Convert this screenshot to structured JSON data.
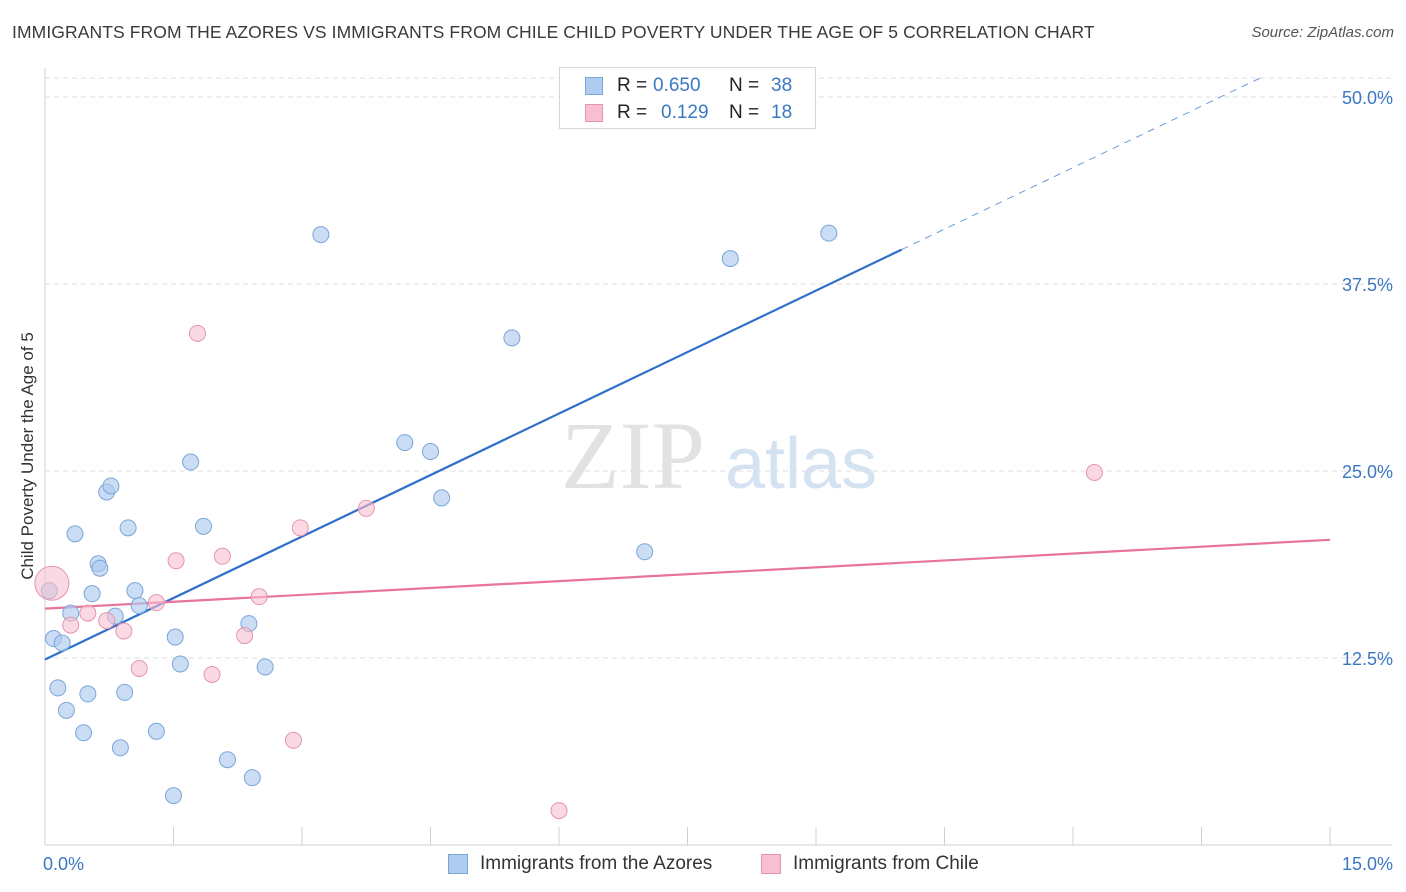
{
  "title": "IMMIGRANTS FROM THE AZORES VS IMMIGRANTS FROM CHILE CHILD POVERTY UNDER THE AGE OF 5 CORRELATION CHART",
  "source": "Source: ZipAtlas.com",
  "watermark": {
    "zip": "ZIP",
    "atlas": "atlas"
  },
  "legend": {
    "rows": [
      {
        "r_label": "R =",
        "r_value": "0.650",
        "n_label": "N =",
        "n_value": "38",
        "color": "#aecbf0"
      },
      {
        "r_label": "R =",
        "r_value": "0.129",
        "n_label": "N =",
        "n_value": "18",
        "color": "#f7bfd0"
      }
    ]
  },
  "bottom_legend": [
    {
      "label": "Immigrants from the Azores",
      "color": "#aecbf0"
    },
    {
      "label": "Immigrants from Chile",
      "color": "#f7bfd0"
    }
  ],
  "colors": {
    "azores_fill": "#aecbf0",
    "azores_stroke": "#7aa6d8",
    "azores_line": "#2e6fcb",
    "chile_fill": "#f7bfd0",
    "chile_stroke": "#e495ae",
    "chile_line": "#e8739c",
    "axis_text": "#3b78c4",
    "grid": "#dddddd"
  },
  "chart_data": {
    "type": "scatter",
    "title": "IMMIGRANTS FROM THE AZORES VS IMMIGRANTS FROM CHILE CHILD POVERTY UNDER THE AGE OF 5 CORRELATION CHART",
    "xlabel": "",
    "ylabel": "Child Poverty Under the Age of 5",
    "xlim": [
      0,
      15
    ],
    "ylim": [
      0,
      50
    ],
    "x_tick_labels": [
      "0.0%",
      "15.0%"
    ],
    "y_ticks": [
      12.5,
      25.0,
      37.5,
      50.0
    ],
    "y_tick_labels": [
      "12.5%",
      "25.0%",
      "37.5%",
      "50.0%"
    ],
    "grid": true,
    "series": [
      {
        "name": "Immigrants from the Azores",
        "r": 0.65,
        "n": 38,
        "points": [
          [
            0.05,
            17.0
          ],
          [
            0.1,
            13.8
          ],
          [
            0.15,
            10.5
          ],
          [
            0.2,
            13.5
          ],
          [
            0.25,
            9.0
          ],
          [
            0.3,
            15.5
          ],
          [
            0.35,
            20.8
          ],
          [
            0.45,
            7.5
          ],
          [
            0.5,
            10.1
          ],
          [
            0.55,
            16.8
          ],
          [
            0.62,
            18.8
          ],
          [
            0.64,
            18.5
          ],
          [
            0.72,
            23.6
          ],
          [
            0.77,
            24.0
          ],
          [
            0.82,
            15.3
          ],
          [
            0.88,
            6.5
          ],
          [
            0.93,
            10.2
          ],
          [
            0.97,
            21.2
          ],
          [
            1.05,
            17.0
          ],
          [
            1.1,
            16.0
          ],
          [
            1.3,
            7.6
          ],
          [
            1.5,
            3.3
          ],
          [
            1.52,
            13.9
          ],
          [
            1.58,
            12.1
          ],
          [
            1.7,
            25.6
          ],
          [
            1.85,
            21.3
          ],
          [
            2.13,
            5.7
          ],
          [
            2.38,
            14.8
          ],
          [
            2.42,
            4.5
          ],
          [
            2.57,
            11.9
          ],
          [
            3.22,
            40.8
          ],
          [
            4.2,
            26.9
          ],
          [
            4.5,
            26.3
          ],
          [
            4.63,
            23.2
          ],
          [
            5.45,
            33.9
          ],
          [
            7.0,
            19.6
          ],
          [
            8.0,
            39.2
          ],
          [
            9.15,
            40.9
          ]
        ],
        "trend": {
          "x1": 0.0,
          "y1": 12.4,
          "x2": 10.0,
          "y2": 39.8,
          "dash_x2": 15.0,
          "dash_y2": 53.5
        }
      },
      {
        "name": "Immigrants from Chile",
        "r": 0.129,
        "n": 18,
        "points": [
          [
            0.08,
            17.5
          ],
          [
            0.3,
            14.7
          ],
          [
            0.5,
            15.5
          ],
          [
            0.72,
            15.0
          ],
          [
            0.92,
            14.3
          ],
          [
            1.1,
            11.8
          ],
          [
            1.3,
            16.2
          ],
          [
            1.53,
            19.0
          ],
          [
            1.78,
            34.2
          ],
          [
            1.95,
            11.4
          ],
          [
            2.07,
            19.3
          ],
          [
            2.33,
            14.0
          ],
          [
            2.5,
            16.6
          ],
          [
            2.9,
            7.0
          ],
          [
            2.98,
            21.2
          ],
          [
            3.75,
            22.5
          ],
          [
            6.0,
            2.3
          ],
          [
            12.25,
            24.9
          ]
        ],
        "trend": {
          "x1": 0.0,
          "y1": 15.8,
          "x2": 15.0,
          "y2": 20.4
        }
      }
    ]
  }
}
